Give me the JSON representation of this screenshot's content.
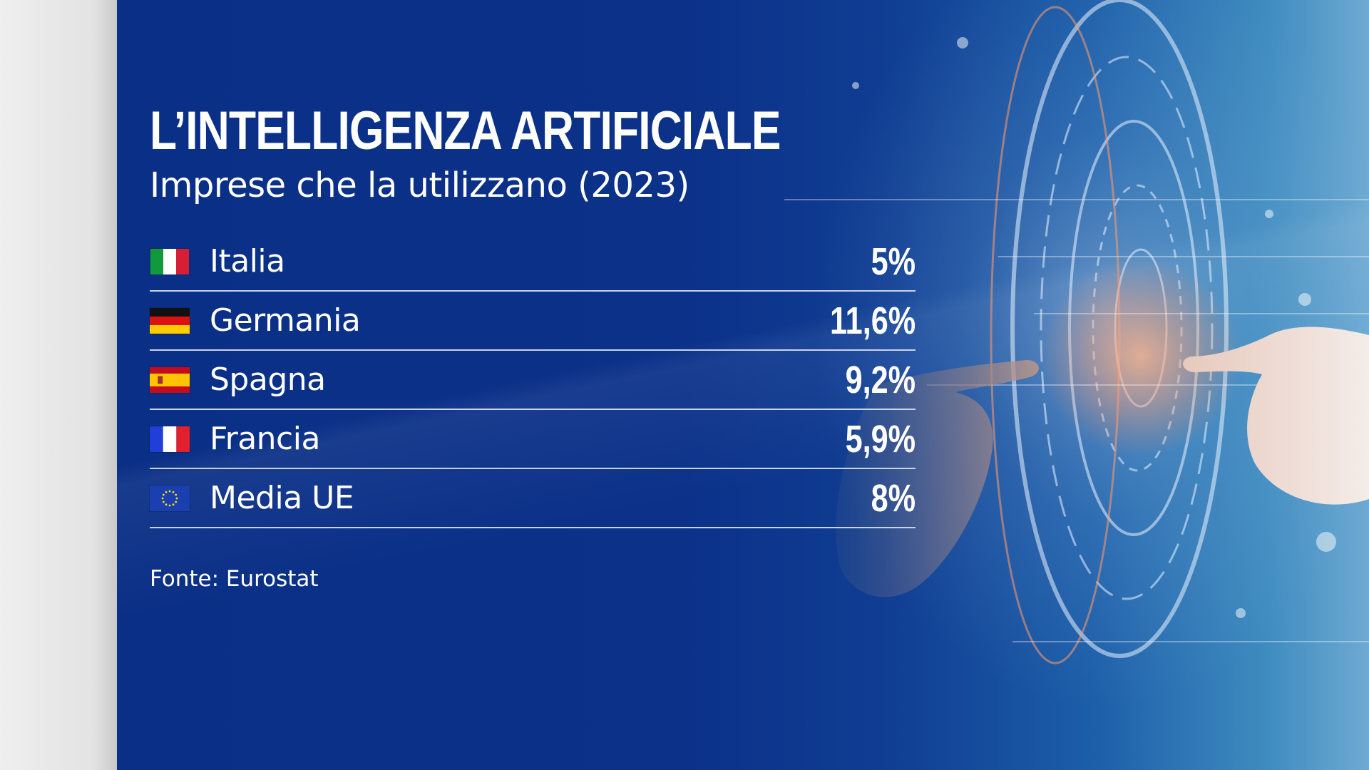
{
  "graphic": {
    "title": "L’INTELLIGENZA ARTIFICIALE",
    "subtitle": "Imprese che la utilizzano (2023)",
    "source": "Fonte: Eurostat"
  },
  "rows": [
    {
      "country": "Italia",
      "value": "5%",
      "flag": "italy-flag"
    },
    {
      "country": "Germania",
      "value": "11,6%",
      "flag": "germany-flag"
    },
    {
      "country": "Spagna",
      "value": "9,2%",
      "flag": "spain-flag"
    },
    {
      "country": "Francia",
      "value": "5,9%",
      "flag": "france-flag"
    },
    {
      "country": "Media UE",
      "value": "8%",
      "flag": "eu-flag"
    }
  ],
  "colors": {
    "background": "#0a2f86",
    "text": "#ffffff",
    "divider": "#c9d3e8"
  }
}
